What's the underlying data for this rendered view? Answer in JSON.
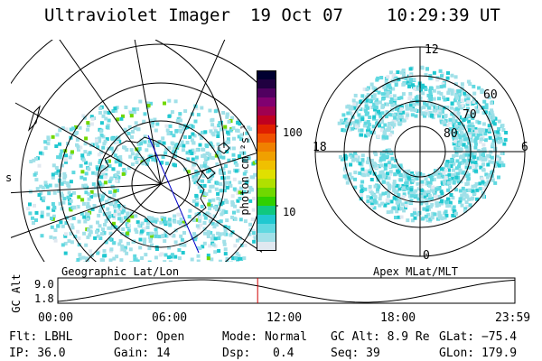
{
  "header": {
    "title": "Ultraviolet Imager",
    "date": "19 Oct 07",
    "time": "10:29:39 UT"
  },
  "geo_map": {
    "label": "Geographic Lat/Lon",
    "edge_tick": "s"
  },
  "colorbar": {
    "unit_label": "photon cm⁻²s⁻¹",
    "ticks": [
      "100",
      "10"
    ],
    "colors": [
      "#000030",
      "#200040",
      "#500060",
      "#800070",
      "#a00050",
      "#c00020",
      "#e02000",
      "#f05000",
      "#f08000",
      "#f0a000",
      "#f0c000",
      "#e0e000",
      "#b0e000",
      "#70d800",
      "#30d000",
      "#10c880",
      "#20c8d0",
      "#60d8e0",
      "#a0e0e8",
      "#e0e8f0"
    ]
  },
  "apex_map": {
    "label": "Apex MLat/MLT",
    "mlt_labels": [
      "12",
      "18",
      "6",
      "0"
    ],
    "lat_labels": [
      "60",
      "70",
      "80"
    ]
  },
  "altitude_plot": {
    "axis_label": "GC Alt",
    "y_ticks": [
      "9.0",
      "1.8"
    ],
    "x_ticks": [
      "00:00",
      "06:00",
      "12:00",
      "18:00",
      "23:59"
    ],
    "current_time_hours": 10.49
  },
  "info": {
    "filter": "Flt: LBHL",
    "door": "Door: Open",
    "mode": "Mode: Normal",
    "gc_alt": "GC Alt: 8.9 Re",
    "glat": "GLat: −75.4",
    "ip": "IP: 36.0",
    "gain": "Gain: 14",
    "dsp_label": "Dsp:",
    "dsp_value": "0.4",
    "seq": "Seq: 39",
    "glon": "GLon: 179.9"
  }
}
